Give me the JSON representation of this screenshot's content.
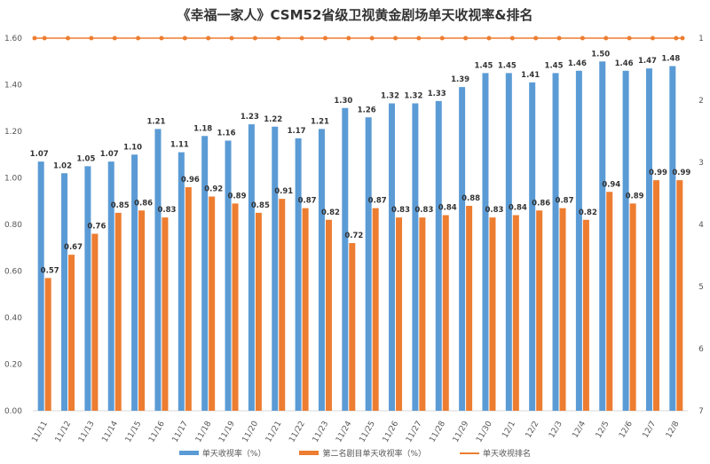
{
  "chart_data": {
    "type": "bar",
    "title": "《幸福一家人》CSM52省级卫视黄金剧场单天收视率&排名",
    "categories": [
      "11/11",
      "11/12",
      "11/13",
      "11/14",
      "11/15",
      "11/16",
      "11/17",
      "11/18",
      "11/19",
      "11/20",
      "11/21",
      "11/22",
      "11/23",
      "11/24",
      "11/25",
      "11/26",
      "11/27",
      "11/28",
      "11/29",
      "11/30",
      "12/1",
      "12/2",
      "12/3",
      "12/4",
      "12/5",
      "12/6",
      "12/7",
      "12/8"
    ],
    "series": [
      {
        "name": "单天收视率（%）",
        "type": "bar",
        "axis": "left",
        "color": "#5b9bd5",
        "values": [
          1.07,
          1.02,
          1.05,
          1.07,
          1.1,
          1.21,
          1.11,
          1.18,
          1.16,
          1.23,
          1.22,
          1.17,
          1.21,
          1.3,
          1.26,
          1.32,
          1.32,
          1.33,
          1.39,
          1.45,
          1.45,
          1.41,
          1.45,
          1.46,
          1.5,
          1.46,
          1.47,
          1.48
        ]
      },
      {
        "name": "第二名剧目单天收视率（%）",
        "type": "bar",
        "axis": "left",
        "color": "#ed7d31",
        "values": [
          0.57,
          0.67,
          0.76,
          0.85,
          0.86,
          0.83,
          0.96,
          0.92,
          0.89,
          0.85,
          0.91,
          0.87,
          0.82,
          0.72,
          0.87,
          0.83,
          0.83,
          0.84,
          0.88,
          0.83,
          0.84,
          0.86,
          0.87,
          0.82,
          0.94,
          0.89,
          0.99,
          0.99
        ]
      },
      {
        "name": "单天收视排名",
        "type": "line",
        "axis": "right",
        "color": "#ed7d31",
        "values": [
          1,
          1,
          1,
          1,
          1,
          1,
          1,
          1,
          1,
          1,
          1,
          1,
          1,
          1,
          1,
          1,
          1,
          1,
          1,
          1,
          1,
          1,
          1,
          1,
          1,
          1,
          1,
          1
        ]
      }
    ],
    "ylim": [
      0,
      1.6
    ],
    "yticks": [
      "0.00",
      "0.20",
      "0.40",
      "0.60",
      "0.80",
      "1.00",
      "1.20",
      "1.40",
      "1.60"
    ],
    "y2lim": [
      1,
      7
    ],
    "y2_reversed": true,
    "y2ticks": [
      "1",
      "2",
      "3",
      "4",
      "5",
      "6",
      "7"
    ],
    "xlabel": "",
    "ylabel": "",
    "legend": "bottom"
  }
}
